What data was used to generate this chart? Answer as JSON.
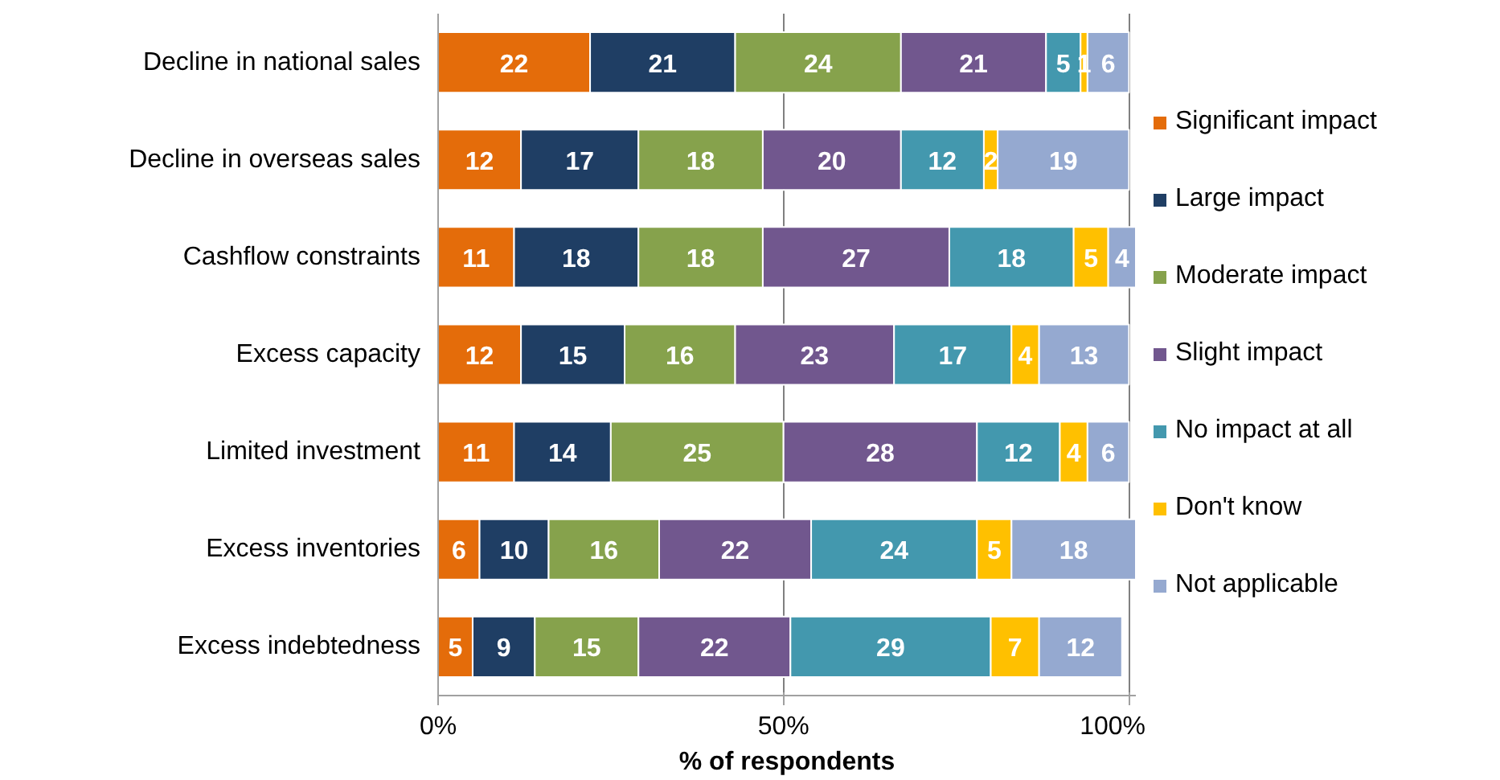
{
  "chart_data": {
    "type": "bar",
    "orientation": "horizontal",
    "stacked": true,
    "data_labels": true,
    "xlabel": "% of respondents",
    "categories": [
      "Decline in national sales",
      "Decline in overseas sales",
      "Cashflow constraints",
      "Excess capacity",
      "Limited investment",
      "Excess inventories",
      "Excess indebtedness"
    ],
    "xlim": [
      0,
      101
    ],
    "xticks": [
      {
        "value": 0,
        "label": "0%"
      },
      {
        "value": 50,
        "label": "50%"
      },
      {
        "value": 100,
        "label": "100%"
      }
    ],
    "grid": "x",
    "legend": "right",
    "series": [
      {
        "name": "Significant impact",
        "color": "#e46c0a",
        "values": [
          22,
          12,
          11,
          12,
          11,
          6,
          5
        ]
      },
      {
        "name": "Large impact",
        "color": "#1f3e64",
        "values": [
          21,
          17,
          18,
          15,
          14,
          10,
          9
        ]
      },
      {
        "name": "Moderate impact",
        "color": "#86a24c",
        "values": [
          24,
          18,
          18,
          16,
          25,
          16,
          15
        ]
      },
      {
        "name": "Slight impact",
        "color": "#71578e",
        "values": [
          21,
          20,
          27,
          23,
          28,
          22,
          22
        ]
      },
      {
        "name": "No impact at all",
        "color": "#4398ae",
        "values": [
          5,
          12,
          18,
          17,
          12,
          24,
          29
        ]
      },
      {
        "name": "Don't know",
        "color": "#ffc000",
        "values": [
          1,
          2,
          5,
          4,
          4,
          5,
          7
        ]
      },
      {
        "name": "Not applicable",
        "color": "#95a9d0",
        "values": [
          6,
          19,
          4,
          13,
          6,
          18,
          12
        ]
      }
    ]
  }
}
